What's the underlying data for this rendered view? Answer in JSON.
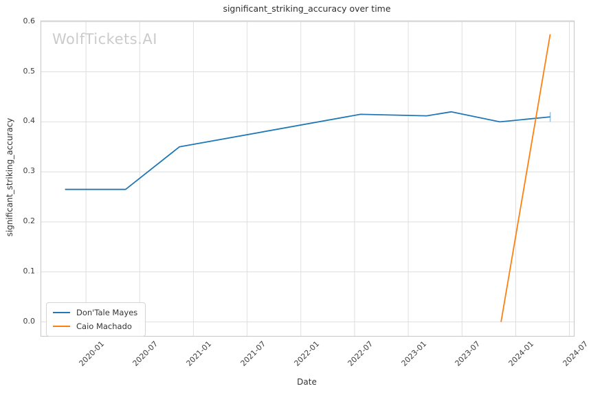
{
  "watermark": "WolfTickets.AI",
  "chart_data": {
    "type": "line",
    "title": "significant_striking_accuracy over time",
    "xlabel": "Date",
    "ylabel": "significant_striking_accuracy",
    "grid": true,
    "legend_position": "lower left",
    "xlim": [
      "2019-08-01",
      "2024-07-16"
    ],
    "ylim": [
      -0.028,
      0.601
    ],
    "xticks": [
      {
        "label": "2020-01",
        "date": "2020-01-01"
      },
      {
        "label": "2020-07",
        "date": "2020-07-01"
      },
      {
        "label": "2021-01",
        "date": "2021-01-01"
      },
      {
        "label": "2021-07",
        "date": "2021-07-01"
      },
      {
        "label": "2022-01",
        "date": "2022-01-01"
      },
      {
        "label": "2022-07",
        "date": "2022-07-01"
      },
      {
        "label": "2023-01",
        "date": "2023-01-01"
      },
      {
        "label": "2023-07",
        "date": "2023-07-01"
      },
      {
        "label": "2024-01",
        "date": "2024-01-01"
      },
      {
        "label": "2024-07",
        "date": "2024-07-01"
      }
    ],
    "yticks": [
      {
        "label": "0.0",
        "value": 0.0
      },
      {
        "label": "0.1",
        "value": 0.1
      },
      {
        "label": "0.2",
        "value": 0.2
      },
      {
        "label": "0.3",
        "value": 0.3
      },
      {
        "label": "0.4",
        "value": 0.4
      },
      {
        "label": "0.5",
        "value": 0.5
      },
      {
        "label": "0.6",
        "value": 0.6
      }
    ],
    "series": [
      {
        "name": "Don'Tale Mayes",
        "color": "#1f77b4",
        "end_tick": true,
        "points": [
          {
            "date": "2019-10-21",
            "value": 0.265
          },
          {
            "date": "2020-05-14",
            "value": 0.265
          },
          {
            "date": "2020-11-14",
            "value": 0.35
          },
          {
            "date": "2022-07-21",
            "value": 0.415
          },
          {
            "date": "2023-03-03",
            "value": 0.412
          },
          {
            "date": "2023-05-25",
            "value": 0.42
          },
          {
            "date": "2023-11-08",
            "value": 0.4
          },
          {
            "date": "2024-04-27",
            "value": 0.41
          }
        ]
      },
      {
        "name": "Caio Machado",
        "color": "#ff7f0e",
        "end_tick": false,
        "points": [
          {
            "date": "2023-11-12",
            "value": 0.0
          },
          {
            "date": "2024-04-27",
            "value": 0.575
          }
        ]
      }
    ],
    "colors": {
      "grid": "#dedede",
      "spine": "#c6c6c6",
      "tick_text": "#3d3d3d",
      "watermark": "#cbcbcb"
    }
  }
}
